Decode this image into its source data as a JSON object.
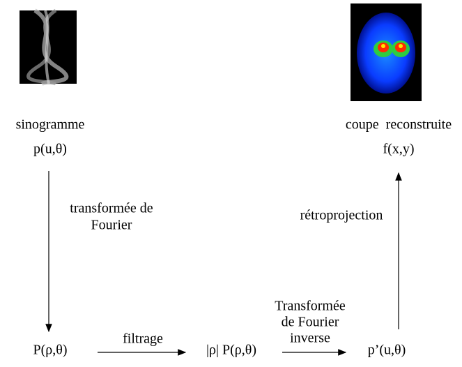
{
  "nodes": [
    {
      "label": "sinogramme",
      "formula": "p(u,θ)"
    },
    {
      "label": "coupe  reconstruite",
      "formula": "f(x,y)"
    },
    {
      "formula": "P(ρ,θ)"
    },
    {
      "formula": "|ρ| P(ρ,θ)"
    },
    {
      "formula": "p’(u,θ)"
    }
  ],
  "edges": [
    {
      "lines": [
        "transformée de",
        "Fourier"
      ]
    },
    {
      "lines": [
        "filtrage"
      ]
    },
    {
      "lines": [
        "Transformée",
        "de Fourier",
        "inverse"
      ]
    },
    {
      "lines": [
        "rétroprojection"
      ]
    }
  ]
}
